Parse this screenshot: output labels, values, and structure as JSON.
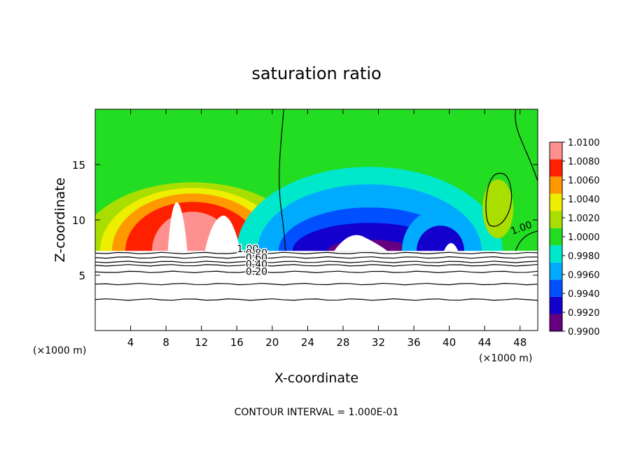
{
  "chart_data": {
    "type": "heatmap",
    "title": "saturation ratio",
    "xlabel": "X-coordinate",
    "ylabel": "Z-coordinate",
    "x_unit": "(×1000 m)",
    "z_unit": "(×1000 m)",
    "x_range": [
      0,
      50
    ],
    "z_range": [
      0,
      20
    ],
    "x_ticks": [
      4,
      8,
      12,
      16,
      20,
      24,
      28,
      32,
      36,
      40,
      44,
      48
    ],
    "x_tick_labels": [
      "4",
      "8",
      "12",
      "16",
      "20",
      "24",
      "28",
      "32",
      "36",
      "40",
      "44",
      "48"
    ],
    "z_ticks": [
      5,
      10,
      15
    ],
    "z_tick_labels": [
      "5",
      "10",
      "15"
    ],
    "colorbar": {
      "min": 0.99,
      "max": 1.01,
      "levels": [
        0.99,
        0.992,
        0.994,
        0.996,
        0.998,
        1.0,
        1.002,
        1.004,
        1.006,
        1.008,
        1.01
      ],
      "tick_labels": [
        "0.9900",
        "0.9920",
        "0.9940",
        "0.9960",
        "0.9980",
        "1.0000",
        "1.0020",
        "1.0040",
        "1.0060",
        "1.0080",
        "1.0100"
      ],
      "colors": [
        "#660080",
        "#1400cc",
        "#0050ff",
        "#00aaff",
        "#00e8cc",
        "#22dd22",
        "#aadd00",
        "#eeee00",
        "#ff9900",
        "#ff2000",
        "#ff9090"
      ]
    },
    "contour_labels": [
      "1.00",
      "0.80",
      "0.60",
      "0.40",
      "0.20",
      "1.00"
    ],
    "contour_interval_text": "CONTOUR INTERVAL = 1.000E-01"
  }
}
